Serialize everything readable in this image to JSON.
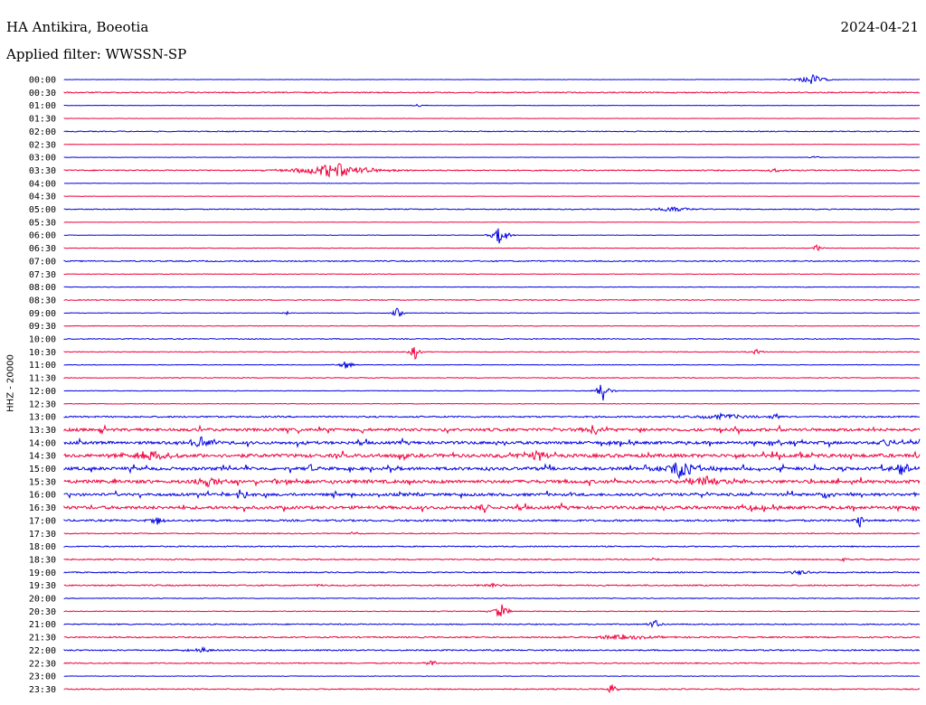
{
  "header": {
    "station": "HA Antikira, Boeotia",
    "date": "2024-04-21",
    "filter": "Applied filter: WWSSN-SP"
  },
  "chart_data": {
    "type": "line",
    "title": "HA Antikira, Boeotia",
    "ylabel": "HHZ - 20000",
    "colors": [
      "#0000e0",
      "#f0003c"
    ],
    "categories": [
      "00:00",
      "00:30",
      "01:00",
      "01:30",
      "02:00",
      "02:30",
      "03:00",
      "03:30",
      "04:00",
      "04:30",
      "05:00",
      "05:30",
      "06:00",
      "06:30",
      "07:00",
      "07:30",
      "08:00",
      "08:30",
      "09:00",
      "09:30",
      "10:00",
      "10:30",
      "11:00",
      "11:30",
      "12:00",
      "12:30",
      "13:00",
      "13:30",
      "14:00",
      "14:30",
      "15:00",
      "15:30",
      "16:00",
      "16:30",
      "17:00",
      "17:30",
      "18:00",
      "18:30",
      "19:00",
      "19:30",
      "20:00",
      "20:30",
      "21:00",
      "21:30",
      "22:00",
      "22:30",
      "23:00",
      "23:30"
    ],
    "noise": [
      0.2,
      0.6,
      0.2,
      0.2,
      0.5,
      0.2,
      0.2,
      0.6,
      0.2,
      0.2,
      0.5,
      0.2,
      0.2,
      0.3,
      0.6,
      0.3,
      0.3,
      0.5,
      0.3,
      0.3,
      0.5,
      0.4,
      0.3,
      0.4,
      0.3,
      0.3,
      0.8,
      1.5,
      1.5,
      1.8,
      1.6,
      1.7,
      1.4,
      1.6,
      1.0,
      0.5,
      0.6,
      0.6,
      0.6,
      0.7,
      0.4,
      0.4,
      0.6,
      0.7,
      0.7,
      0.6,
      0.3,
      0.6
    ],
    "events": [
      {
        "row": 0,
        "x": 0.874,
        "amp": 6,
        "w": 0.012
      },
      {
        "row": 2,
        "x": 0.415,
        "amp": 2,
        "w": 0.005
      },
      {
        "row": 6,
        "x": 0.878,
        "amp": 2,
        "w": 0.004
      },
      {
        "row": 7,
        "x": 0.316,
        "amp": 9,
        "w": 0.03
      },
      {
        "row": 7,
        "x": 0.83,
        "amp": 2,
        "w": 0.01
      },
      {
        "row": 10,
        "x": 0.71,
        "amp": 3,
        "w": 0.02
      },
      {
        "row": 12,
        "x": 0.51,
        "amp": 13,
        "w": 0.006
      },
      {
        "row": 13,
        "x": 0.88,
        "amp": 4,
        "w": 0.004
      },
      {
        "row": 18,
        "x": 0.39,
        "amp": 7,
        "w": 0.004
      },
      {
        "row": 18,
        "x": 0.26,
        "amp": 2,
        "w": 0.003
      },
      {
        "row": 21,
        "x": 0.41,
        "amp": 9,
        "w": 0.004
      },
      {
        "row": 21,
        "x": 0.81,
        "amp": 3,
        "w": 0.006
      },
      {
        "row": 22,
        "x": 0.33,
        "amp": 5,
        "w": 0.006
      },
      {
        "row": 24,
        "x": 0.63,
        "amp": 13,
        "w": 0.005
      },
      {
        "row": 26,
        "x": 0.83,
        "amp": 7,
        "w": 0.004
      },
      {
        "row": 26,
        "x": 0.77,
        "amp": 3,
        "w": 0.03
      },
      {
        "row": 27,
        "x": 0.62,
        "amp": 5,
        "w": 0.01
      },
      {
        "row": 28,
        "x": 0.16,
        "amp": 6,
        "w": 0.015
      },
      {
        "row": 28,
        "x": 0.96,
        "amp": 7,
        "w": 0.006
      },
      {
        "row": 29,
        "x": 0.1,
        "amp": 6,
        "w": 0.02
      },
      {
        "row": 29,
        "x": 0.55,
        "amp": 6,
        "w": 0.012
      },
      {
        "row": 30,
        "x": 0.72,
        "amp": 11,
        "w": 0.015
      },
      {
        "row": 30,
        "x": 0.98,
        "amp": 7,
        "w": 0.01
      },
      {
        "row": 30,
        "x": 0.29,
        "amp": 6,
        "w": 0.005
      },
      {
        "row": 31,
        "x": 0.17,
        "amp": 6,
        "w": 0.01
      },
      {
        "row": 31,
        "x": 0.75,
        "amp": 6,
        "w": 0.02
      },
      {
        "row": 32,
        "x": 0.21,
        "amp": 6,
        "w": 0.005
      },
      {
        "row": 32,
        "x": 0.89,
        "amp": 6,
        "w": 0.006
      },
      {
        "row": 33,
        "x": 0.49,
        "amp": 6,
        "w": 0.006
      },
      {
        "row": 33,
        "x": 0.8,
        "amp": 6,
        "w": 0.006
      },
      {
        "row": 34,
        "x": 0.11,
        "amp": 5,
        "w": 0.006
      },
      {
        "row": 34,
        "x": 0.93,
        "amp": 10,
        "w": 0.003
      },
      {
        "row": 35,
        "x": 0.34,
        "amp": 3,
        "w": 0.005
      },
      {
        "row": 37,
        "x": 0.69,
        "amp": 3,
        "w": 0.004
      },
      {
        "row": 37,
        "x": 0.91,
        "amp": 3,
        "w": 0.004
      },
      {
        "row": 38,
        "x": 0.86,
        "amp": 3,
        "w": 0.01
      },
      {
        "row": 39,
        "x": 0.3,
        "amp": 2,
        "w": 0.006
      },
      {
        "row": 39,
        "x": 0.5,
        "amp": 3,
        "w": 0.01
      },
      {
        "row": 41,
        "x": 0.51,
        "amp": 10,
        "w": 0.006
      },
      {
        "row": 42,
        "x": 0.69,
        "amp": 7,
        "w": 0.004
      },
      {
        "row": 43,
        "x": 0.65,
        "amp": 3,
        "w": 0.03
      },
      {
        "row": 44,
        "x": 0.16,
        "amp": 3,
        "w": 0.01
      },
      {
        "row": 45,
        "x": 0.43,
        "amp": 4,
        "w": 0.005
      },
      {
        "row": 47,
        "x": 0.64,
        "amp": 6,
        "w": 0.004
      }
    ]
  }
}
